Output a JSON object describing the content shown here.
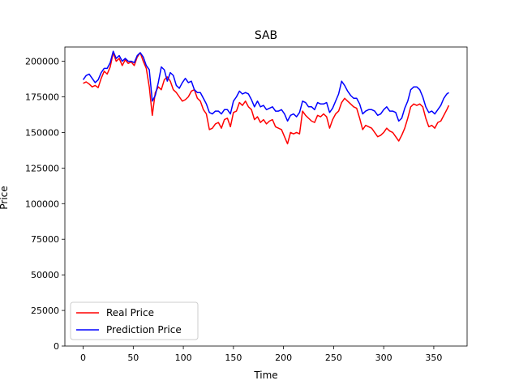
{
  "chart_data": {
    "type": "line",
    "title": "SAB",
    "xlabel": "Time",
    "ylabel": "Price",
    "xlim": [
      -18.25,
      383.25
    ],
    "ylim": [
      0,
      210000
    ],
    "xticks": [
      0,
      50,
      100,
      150,
      200,
      250,
      300,
      350
    ],
    "yticks": [
      0,
      25000,
      50000,
      75000,
      100000,
      125000,
      150000,
      175000,
      200000
    ],
    "grid": false,
    "legend": "lower-left",
    "series": [
      {
        "name": "Real Price",
        "color": "#ff0000",
        "x": [
          0,
          3,
          6,
          9,
          12,
          15,
          18,
          21,
          24,
          27,
          30,
          33,
          36,
          39,
          42,
          45,
          48,
          51,
          54,
          57,
          60,
          63,
          66,
          69,
          72,
          75,
          78,
          81,
          84,
          87,
          90,
          93,
          96,
          99,
          102,
          105,
          108,
          111,
          114,
          117,
          120,
          123,
          126,
          129,
          132,
          135,
          138,
          141,
          144,
          147,
          150,
          153,
          156,
          159,
          162,
          165,
          168,
          171,
          174,
          177,
          180,
          183,
          186,
          189,
          192,
          195,
          198,
          201,
          204,
          207,
          210,
          213,
          216,
          219,
          222,
          225,
          228,
          231,
          234,
          237,
          240,
          243,
          246,
          249,
          252,
          255,
          258,
          261,
          264,
          267,
          270,
          273,
          276,
          279,
          282,
          285,
          288,
          291,
          294,
          297,
          300,
          303,
          306,
          309,
          312,
          315,
          318,
          321,
          324,
          327,
          330,
          333,
          336,
          339,
          342,
          345,
          348,
          351,
          354,
          357,
          360,
          363,
          365
        ],
        "y": [
          184500,
          185500,
          184000,
          182000,
          183000,
          181500,
          188000,
          193000,
          191000,
          196000,
          206000,
          200000,
          202000,
          197000,
          201000,
          198500,
          199500,
          197000,
          203000,
          206000,
          200000,
          195000,
          182000,
          162000,
          178000,
          182000,
          180000,
          187000,
          189000,
          186000,
          180000,
          178000,
          175000,
          172000,
          173000,
          175000,
          179000,
          180000,
          174000,
          172000,
          166000,
          163000,
          152000,
          153000,
          156000,
          157000,
          153000,
          159000,
          160000,
          154000,
          164000,
          165000,
          171000,
          169000,
          172000,
          168000,
          166000,
          159000,
          161000,
          157000,
          159000,
          156000,
          158000,
          159000,
          154000,
          153000,
          152000,
          147000,
          142000,
          150000,
          149000,
          150000,
          149000,
          165000,
          162000,
          160000,
          158000,
          157000,
          162000,
          161000,
          163000,
          161000,
          153000,
          159000,
          163000,
          165000,
          171000,
          174000,
          172000,
          170000,
          168000,
          167000,
          160000,
          152000,
          155000,
          154000,
          153000,
          150000,
          147000,
          148000,
          150000,
          153000,
          151000,
          150000,
          147000,
          144000,
          148000,
          153000,
          160000,
          168000,
          170000,
          169000,
          170000,
          168000,
          160000,
          154000,
          155000,
          153000,
          157000,
          158000,
          162000,
          166000,
          169000
        ]
      },
      {
        "name": "Prediction Price",
        "color": "#0000ff",
        "x": [
          0,
          3,
          6,
          9,
          12,
          15,
          18,
          21,
          24,
          27,
          30,
          33,
          36,
          39,
          42,
          45,
          48,
          51,
          54,
          57,
          60,
          63,
          66,
          69,
          72,
          75,
          78,
          81,
          84,
          87,
          90,
          93,
          96,
          99,
          102,
          105,
          108,
          111,
          114,
          117,
          120,
          123,
          126,
          129,
          132,
          135,
          138,
          141,
          144,
          147,
          150,
          153,
          156,
          159,
          162,
          165,
          168,
          171,
          174,
          177,
          180,
          183,
          186,
          189,
          192,
          195,
          198,
          201,
          204,
          207,
          210,
          213,
          216,
          219,
          222,
          225,
          228,
          231,
          234,
          237,
          240,
          243,
          246,
          249,
          252,
          255,
          258,
          261,
          264,
          267,
          270,
          273,
          276,
          279,
          282,
          285,
          288,
          291,
          294,
          297,
          300,
          303,
          306,
          309,
          312,
          315,
          318,
          321,
          324,
          327,
          330,
          333,
          336,
          339,
          342,
          345,
          348,
          351,
          354,
          357,
          360,
          363,
          365
        ],
        "y": [
          187000,
          190000,
          191000,
          188000,
          185000,
          187000,
          192000,
          195000,
          195000,
          199000,
          207000,
          202000,
          204000,
          200000,
          202000,
          200000,
          200000,
          199000,
          204000,
          206000,
          203000,
          197000,
          194000,
          172000,
          176000,
          185000,
          196000,
          194000,
          186000,
          192000,
          190000,
          183000,
          181000,
          185000,
          188000,
          185000,
          186000,
          180000,
          178000,
          178000,
          174000,
          170000,
          164000,
          163000,
          165000,
          165000,
          163000,
          166000,
          166000,
          163000,
          172000,
          175000,
          179000,
          177000,
          178000,
          177000,
          173000,
          168000,
          172000,
          168000,
          169000,
          166000,
          167000,
          168000,
          165000,
          165000,
          166000,
          163000,
          158000,
          162000,
          163000,
          161000,
          164000,
          172000,
          171000,
          168000,
          168000,
          166000,
          171000,
          170000,
          170000,
          171000,
          164000,
          167000,
          172000,
          177000,
          186000,
          183000,
          179000,
          176000,
          174000,
          174000,
          170000,
          163000,
          165000,
          166000,
          166000,
          165000,
          162000,
          163000,
          166000,
          168000,
          165000,
          165000,
          164000,
          158000,
          160000,
          167000,
          172000,
          180000,
          182000,
          182000,
          180000,
          175000,
          168000,
          164000,
          165000,
          163000,
          166000,
          169000,
          174000,
          177000,
          178000
        ]
      }
    ]
  }
}
